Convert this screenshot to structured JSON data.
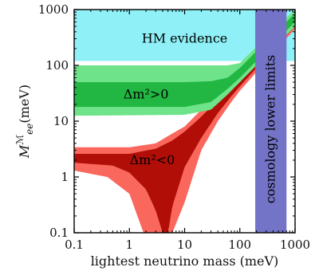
{
  "chart_data": {
    "type": "area",
    "xlabel": "lightest neutrino mass (meV)",
    "ylabel_main": "M",
    "ylabel_sup": "ℳ",
    "ylabel_sub": "ee",
    "ylabel_unit": "(meV)",
    "xscale": "log",
    "yscale": "log",
    "xlim": [
      0.1,
      1000
    ],
    "ylim": [
      0.1,
      1000
    ],
    "xticks": [
      {
        "value": 0.1,
        "label": "0.1"
      },
      {
        "value": 1,
        "label": "1"
      },
      {
        "value": 10,
        "label": "10"
      },
      {
        "value": 100,
        "label": "100"
      },
      {
        "value": 1000,
        "label": "1000"
      }
    ],
    "yticks": [
      {
        "value": 0.1,
        "label": "0.1"
      },
      {
        "value": 1,
        "label": "1"
      },
      {
        "value": 10,
        "label": "10"
      },
      {
        "value": 100,
        "label": "100"
      },
      {
        "value": 1000,
        "label": "1000"
      }
    ],
    "regions": [
      {
        "key": "hm",
        "label": "HM evidence",
        "x_range": [
          0.1,
          1000
        ],
        "y_range": [
          120,
          1000
        ],
        "color": "#8ff1f7"
      },
      {
        "key": "cosmo",
        "label": "cosmology lower limits",
        "x_range": [
          190,
          700
        ],
        "y_range": [
          0.1,
          1000
        ],
        "color": "#7373c7"
      }
    ],
    "bands": [
      {
        "key": "inverted",
        "label": "Δm²>0",
        "light_color": "#6fe389",
        "dark_color": "#21b742",
        "outer_low": [
          [
            0.1,
            12.5
          ],
          [
            10,
            13
          ],
          [
            30,
            16
          ],
          [
            60,
            30
          ],
          [
            100,
            50
          ],
          [
            300,
            150
          ],
          [
            1000,
            500
          ]
        ],
        "outer_high": [
          [
            0.1,
            100
          ],
          [
            10,
            100
          ],
          [
            30,
            100
          ],
          [
            60,
            100
          ],
          [
            100,
            110
          ],
          [
            300,
            320
          ],
          [
            1000,
            1000
          ]
        ],
        "inner_low": [
          [
            0.1,
            18
          ],
          [
            10,
            18
          ],
          [
            30,
            22
          ],
          [
            60,
            38
          ],
          [
            100,
            60
          ],
          [
            300,
            180
          ],
          [
            1000,
            600
          ]
        ],
        "inner_high": [
          [
            0.1,
            50
          ],
          [
            10,
            50
          ],
          [
            30,
            52
          ],
          [
            60,
            60
          ],
          [
            100,
            90
          ],
          [
            300,
            270
          ],
          [
            1000,
            850
          ]
        ]
      },
      {
        "key": "normal",
        "label": "Δm²<0",
        "light_color": "#f9675d",
        "dark_color": "#b10e08",
        "outer_low": [
          [
            0.1,
            1.3
          ],
          [
            0.4,
            1.0
          ],
          [
            1,
            0.5
          ],
          [
            1.8,
            0.1
          ],
          [
            3,
            0.1
          ],
          [
            6,
            0.1
          ],
          [
            10,
            0.35
          ],
          [
            20,
            3
          ],
          [
            40,
            10
          ],
          [
            70,
            22
          ],
          [
            100,
            35
          ],
          [
            300,
            120
          ],
          [
            1000,
            450
          ]
        ],
        "outer_high": [
          [
            0.1,
            3.4
          ],
          [
            1,
            3.4
          ],
          [
            3,
            4
          ],
          [
            6,
            6
          ],
          [
            10,
            8
          ],
          [
            20,
            16
          ],
          [
            40,
            30
          ],
          [
            70,
            50
          ],
          [
            100,
            70
          ],
          [
            300,
            220
          ],
          [
            1000,
            750
          ]
        ],
        "inner_low": [
          [
            0.1,
            1.8
          ],
          [
            0.5,
            1.6
          ],
          [
            1,
            1.2
          ],
          [
            2,
            0.6
          ],
          [
            3,
            0.25
          ],
          [
            4,
            0.1
          ],
          [
            5,
            0.1
          ],
          [
            6,
            0.3
          ],
          [
            10,
            1.5
          ],
          [
            20,
            5
          ],
          [
            40,
            14
          ],
          [
            70,
            28
          ],
          [
            100,
            42
          ],
          [
            300,
            140
          ],
          [
            1000,
            500
          ]
        ],
        "inner_high": [
          [
            0.1,
            2.6
          ],
          [
            1,
            2.6
          ],
          [
            3,
            3.2
          ],
          [
            6,
            4.5
          ],
          [
            10,
            6.5
          ],
          [
            20,
            12
          ],
          [
            40,
            24
          ],
          [
            70,
            40
          ],
          [
            100,
            55
          ],
          [
            300,
            180
          ],
          [
            1000,
            650
          ]
        ]
      }
    ],
    "grid": false,
    "legend": "none"
  }
}
